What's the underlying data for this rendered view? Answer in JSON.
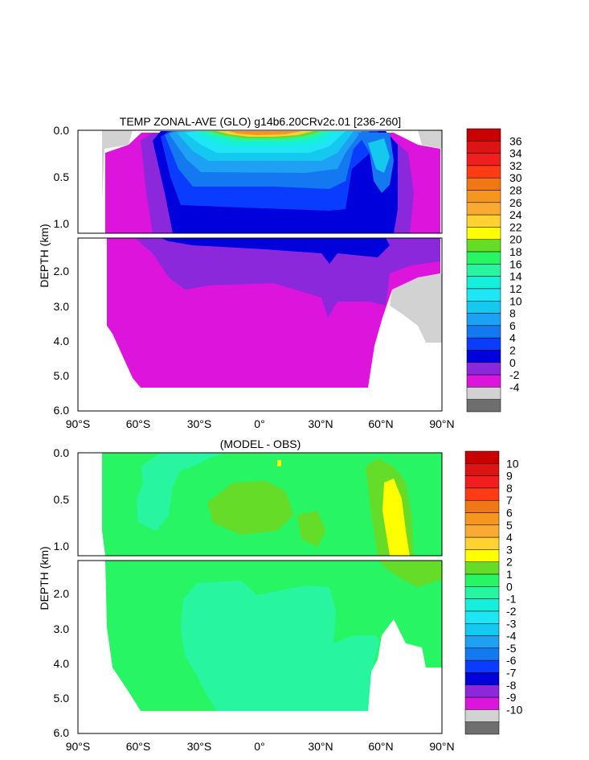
{
  "chart_data": [
    {
      "type": "heatmap",
      "title": "TEMP ZONAL-AVE (GLO) g14b6.20CRv2c.01 [236-260]",
      "ylabel": "DEPTH (km)",
      "x_ticks": [
        "90°S",
        "60°S",
        "30°S",
        "0°",
        "30°N",
        "60°N",
        "90°N"
      ],
      "y_ticks_upper": [
        "0.0",
        "0.5",
        "1.0"
      ],
      "y_ticks_lower": [
        "2.0",
        "3.0",
        "4.0",
        "5.0",
        "6.0"
      ],
      "xlim": [
        -90,
        90
      ],
      "ylim_upper_km": [
        0,
        1.1
      ],
      "ylim_lower_km": [
        1.1,
        6.0
      ],
      "colorbar_labels": [
        "36",
        "34",
        "32",
        "30",
        "28",
        "26",
        "24",
        "22",
        "20",
        "18",
        "16",
        "14",
        "12",
        "10",
        "8",
        "6",
        "4",
        "2",
        "0",
        "-2",
        "-4"
      ],
      "colorbar_colors": [
        "#c80000",
        "#dc1414",
        "#f01e1e",
        "#ff3c14",
        "#f07814",
        "#f5961e",
        "#faaa32",
        "#ffd232",
        "#ffff00",
        "#64dc28",
        "#28f564",
        "#28f5a0",
        "#14f0dc",
        "#1ee6f5",
        "#14c8f0",
        "#1ea0f5",
        "#1478f0",
        "#0a3cff",
        "#0000dc",
        "#8c28dc",
        "#dc14dc",
        "#d2d2d2",
        "#6e6e6e"
      ]
    },
    {
      "type": "heatmap",
      "title": "(MODEL - OBS)",
      "ylabel": "DEPTH (km)",
      "x_ticks": [
        "90°S",
        "60°S",
        "30°S",
        "0°",
        "30°N",
        "60°N",
        "90°N"
      ],
      "y_ticks_upper": [
        "0.0",
        "0.5",
        "1.0"
      ],
      "y_ticks_lower": [
        "2.0",
        "3.0",
        "4.0",
        "5.0",
        "6.0"
      ],
      "xlim": [
        -90,
        90
      ],
      "ylim_upper_km": [
        0,
        1.1
      ],
      "ylim_lower_km": [
        1.1,
        6.0
      ],
      "colorbar_labels": [
        "10",
        "9",
        "8",
        "7",
        "6",
        "5",
        "4",
        "3",
        "2",
        "1",
        "0",
        "-1",
        "-2",
        "-3",
        "-4",
        "-5",
        "-6",
        "-7",
        "-8",
        "-9",
        "-10"
      ],
      "colorbar_colors": [
        "#c80000",
        "#dc1414",
        "#f01e1e",
        "#ff3c14",
        "#f07814",
        "#f5961e",
        "#faaa32",
        "#ffd232",
        "#ffff00",
        "#64dc28",
        "#28f564",
        "#28f5a0",
        "#14f0dc",
        "#1ee6f5",
        "#14c8f0",
        "#1ea0f5",
        "#1478f0",
        "#0a3cff",
        "#0000dc",
        "#8c28dc",
        "#dc14dc",
        "#d2d2d2",
        "#6e6e6e"
      ]
    }
  ]
}
